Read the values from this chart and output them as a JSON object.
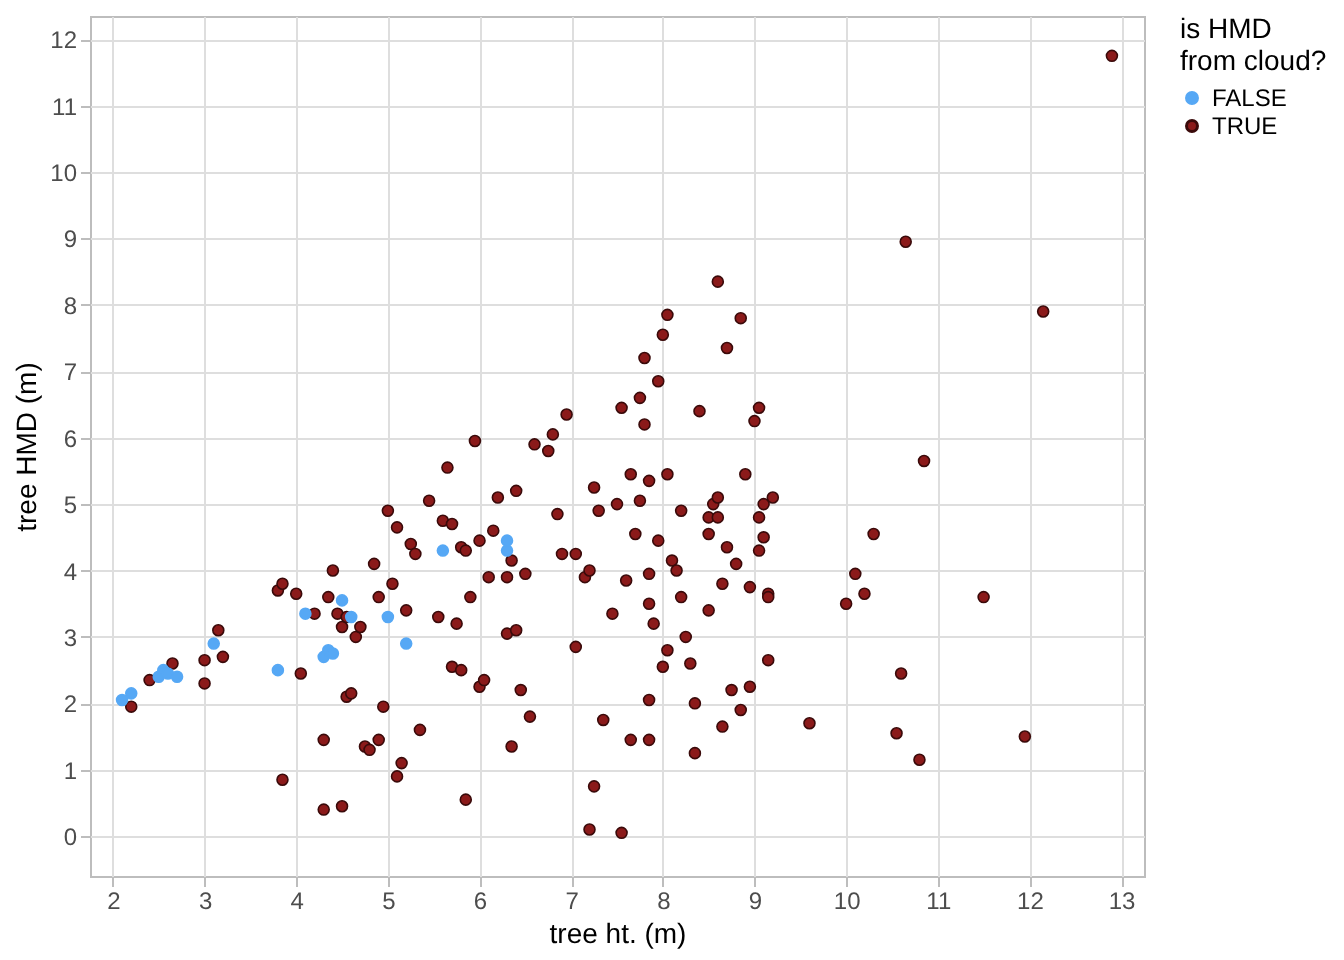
{
  "chart_data": {
    "type": "scatter",
    "xlabel": "tree ht. (m)",
    "ylabel": "tree HMD (m)",
    "legend_title": "is HMD\nfrom cloud?",
    "legend": "right",
    "grid": true,
    "marker": "circle",
    "xlim": [
      1.75,
      13.25
    ],
    "xticks": [
      2,
      3,
      4,
      5,
      6,
      7,
      8,
      9,
      10,
      11,
      12,
      13
    ],
    "ylim": [
      -0.6,
      12.35
    ],
    "yticks": [
      0,
      1,
      2,
      3,
      4,
      5,
      6,
      7,
      8,
      9,
      10,
      11,
      12
    ],
    "series": [
      {
        "name": "FALSE",
        "color": "#56a8f5",
        "x": [
          2.1,
          2.2,
          2.5,
          2.55,
          2.6,
          2.7,
          3.1,
          3.8,
          4.1,
          4.3,
          4.35,
          4.4,
          4.5,
          4.6,
          5.0,
          5.2,
          5.6,
          6.3,
          6.3
        ],
        "values": [
          2.05,
          2.15,
          2.4,
          2.5,
          2.45,
          2.4,
          2.9,
          2.5,
          3.35,
          2.7,
          2.8,
          2.75,
          3.55,
          3.3,
          3.3,
          2.9,
          4.3,
          4.3,
          4.45
        ]
      },
      {
        "name": "TRUE",
        "color": "#8b1a1a",
        "x": [
          2.2,
          2.4,
          2.65,
          3.0,
          3.0,
          3.15,
          3.2,
          3.8,
          3.85,
          3.85,
          4.0,
          4.05,
          4.2,
          4.3,
          4.3,
          4.35,
          4.4,
          4.45,
          4.5,
          4.5,
          4.55,
          4.55,
          4.6,
          4.65,
          4.7,
          4.75,
          4.8,
          4.85,
          4.9,
          4.9,
          4.95,
          5.05,
          5.0,
          5.1,
          5.1,
          5.15,
          5.2,
          5.25,
          5.35,
          5.3,
          5.45,
          5.55,
          5.6,
          5.65,
          5.7,
          5.7,
          5.75,
          5.8,
          5.8,
          5.85,
          5.85,
          5.9,
          5.95,
          6.0,
          6.0,
          6.05,
          6.1,
          6.15,
          6.2,
          6.3,
          6.3,
          6.35,
          6.35,
          6.4,
          6.4,
          6.45,
          6.5,
          6.55,
          6.6,
          6.75,
          6.8,
          6.85,
          6.9,
          6.95,
          7.05,
          7.05,
          7.15,
          7.2,
          7.2,
          7.25,
          7.25,
          7.3,
          7.35,
          7.45,
          7.5,
          7.55,
          7.55,
          7.6,
          7.65,
          7.65,
          7.7,
          7.75,
          7.75,
          7.8,
          7.8,
          7.85,
          7.85,
          7.85,
          7.85,
          7.85,
          7.9,
          7.95,
          7.95,
          8.0,
          8.0,
          8.05,
          8.05,
          8.05,
          8.1,
          8.15,
          8.2,
          8.2,
          8.25,
          8.3,
          8.35,
          8.35,
          8.4,
          8.5,
          8.5,
          8.5,
          8.55,
          8.6,
          8.6,
          8.6,
          8.65,
          8.65,
          8.7,
          8.7,
          8.75,
          8.8,
          8.85,
          8.85,
          8.9,
          8.95,
          8.95,
          9.0,
          9.05,
          9.05,
          9.05,
          9.1,
          9.1,
          9.15,
          9.15,
          9.15,
          9.2,
          9.6,
          10.0,
          10.1,
          10.2,
          10.3,
          10.55,
          10.6,
          10.65,
          10.8,
          10.85,
          11.5,
          11.95,
          12.15,
          12.9
        ],
        "values": [
          1.95,
          2.35,
          2.6,
          2.65,
          2.3,
          3.1,
          2.7,
          3.7,
          3.8,
          0.85,
          3.65,
          2.45,
          3.35,
          0.4,
          1.45,
          3.6,
          4.0,
          3.35,
          3.15,
          0.45,
          2.1,
          3.3,
          2.15,
          3.0,
          3.15,
          1.35,
          1.3,
          4.1,
          3.6,
          1.45,
          1.95,
          3.8,
          4.9,
          4.65,
          0.9,
          1.1,
          3.4,
          4.4,
          1.6,
          4.25,
          5.05,
          3.3,
          4.75,
          5.55,
          4.7,
          2.55,
          3.2,
          4.35,
          2.5,
          0.55,
          4.3,
          3.6,
          5.95,
          2.25,
          4.45,
          2.35,
          3.9,
          4.6,
          5.1,
          3.9,
          3.05,
          4.15,
          1.35,
          5.2,
          3.1,
          2.2,
          3.95,
          1.8,
          5.9,
          5.8,
          6.05,
          4.85,
          4.25,
          6.35,
          4.25,
          2.85,
          3.9,
          4.0,
          0.1,
          5.25,
          0.75,
          4.9,
          1.75,
          3.35,
          5.0,
          6.45,
          0.05,
          3.85,
          5.45,
          1.45,
          4.55,
          6.6,
          5.05,
          7.2,
          6.2,
          5.35,
          3.5,
          3.95,
          2.05,
          1.45,
          3.2,
          4.45,
          6.85,
          7.55,
          2.55,
          7.85,
          5.45,
          2.8,
          4.15,
          4.0,
          4.9,
          3.6,
          3.0,
          2.6,
          2.0,
          1.25,
          6.4,
          4.8,
          4.55,
          3.4,
          5.0,
          8.35,
          5.1,
          4.8,
          3.8,
          1.65,
          4.35,
          7.35,
          2.2,
          4.1,
          1.9,
          7.8,
          5.45,
          3.75,
          2.25,
          6.25,
          4.3,
          6.45,
          4.8,
          5.0,
          4.5,
          3.65,
          3.6,
          2.65,
          5.1,
          1.7,
          3.5,
          3.95,
          3.65,
          4.55,
          1.55,
          2.45,
          8.95,
          1.15,
          5.65,
          3.6,
          1.5,
          7.9,
          11.75
        ]
      }
    ]
  }
}
